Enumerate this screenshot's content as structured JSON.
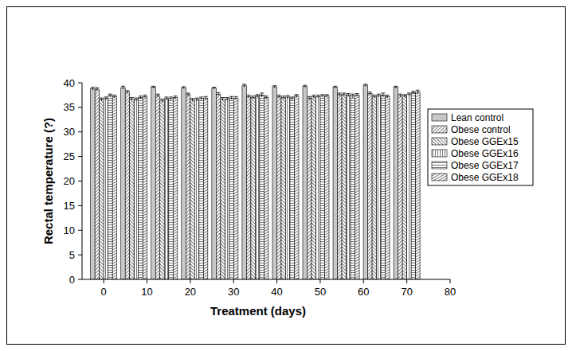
{
  "chart_data": {
    "type": "bar",
    "x_label": "Treatment (days)",
    "y_label": "Rectal temperature (?)",
    "x": [
      0,
      7,
      14,
      21,
      28,
      35,
      42,
      49,
      56,
      63,
      70
    ],
    "xlim": [
      -5,
      80
    ],
    "xticks": [
      0,
      10,
      20,
      30,
      40,
      50,
      60,
      70,
      80
    ],
    "ylim": [
      0,
      40
    ],
    "yticks": [
      0,
      5,
      10,
      15,
      20,
      25,
      30,
      35,
      40
    ],
    "grid": false,
    "legend": "right",
    "series": [
      {
        "name": "Lean control",
        "color": "#c8c8c8",
        "values": [
          38.8,
          39.0,
          39.1,
          39.0,
          38.9,
          39.4,
          39.2,
          39.3,
          39.1,
          39.5,
          39.1
        ],
        "errors": [
          0.3,
          0.3,
          0.2,
          0.2,
          0.2,
          0.3,
          0.2,
          0.2,
          0.2,
          0.2,
          0.2
        ]
      },
      {
        "name": "Obese control",
        "color": "#555555",
        "values": [
          38.7,
          38.1,
          37.4,
          37.6,
          37.7,
          37.2,
          37.2,
          36.9,
          37.6,
          37.8,
          37.4
        ],
        "errors": [
          0.3,
          0.3,
          0.3,
          0.3,
          0.3,
          0.3,
          0.3,
          0.3,
          0.3,
          0.3,
          0.3
        ]
      },
      {
        "name": "Obese GGEx15",
        "color": "#555555",
        "values": [
          36.6,
          36.7,
          36.4,
          36.5,
          36.7,
          37.0,
          37.0,
          37.2,
          37.6,
          37.2,
          37.3
        ],
        "errors": [
          0.3,
          0.3,
          0.3,
          0.3,
          0.3,
          0.3,
          0.3,
          0.3,
          0.3,
          0.3,
          0.3
        ]
      },
      {
        "name": "Obese GGEx16",
        "color": "#555555",
        "values": [
          36.8,
          36.6,
          36.8,
          36.6,
          36.7,
          37.3,
          37.1,
          37.2,
          37.5,
          37.4,
          37.6
        ],
        "errors": [
          0.3,
          0.3,
          0.3,
          0.3,
          0.3,
          0.3,
          0.3,
          0.3,
          0.3,
          0.3,
          0.3
        ]
      },
      {
        "name": "Obese GGEx17",
        "color": "#555555",
        "values": [
          37.4,
          37.0,
          36.8,
          36.8,
          36.9,
          37.5,
          36.8,
          37.3,
          37.3,
          37.5,
          38.0
        ],
        "errors": [
          0.3,
          0.3,
          0.3,
          0.3,
          0.3,
          0.4,
          0.3,
          0.3,
          0.4,
          0.4,
          0.3
        ]
      },
      {
        "name": "Obese GGEx18",
        "color": "#555555",
        "values": [
          37.2,
          37.2,
          37.0,
          36.9,
          36.9,
          37.0,
          37.3,
          37.3,
          37.5,
          37.2,
          38.1
        ],
        "errors": [
          0.3,
          0.3,
          0.3,
          0.3,
          0.3,
          0.3,
          0.3,
          0.3,
          0.3,
          0.3,
          0.4
        ]
      }
    ]
  }
}
